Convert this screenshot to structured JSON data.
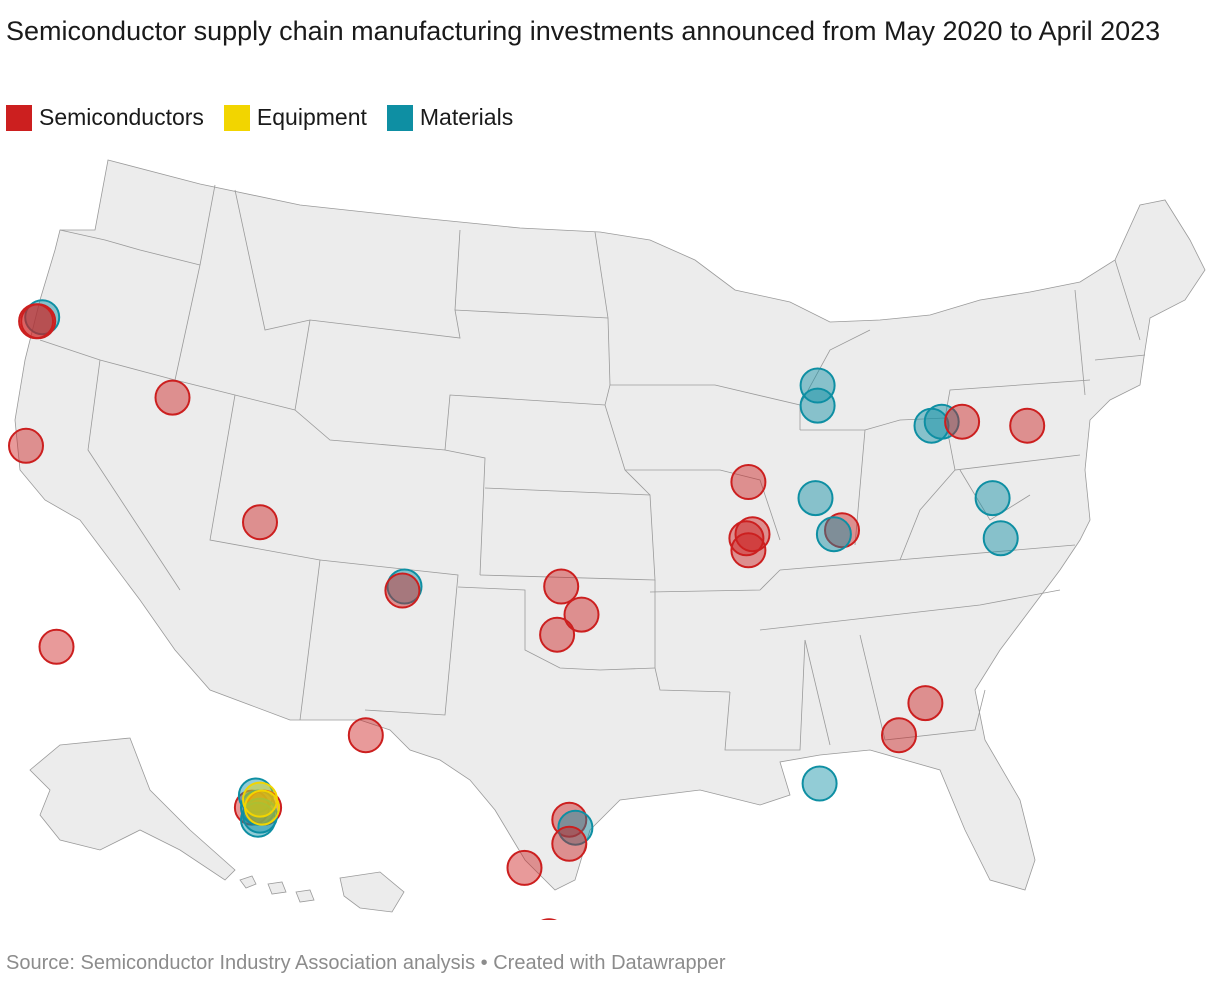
{
  "title": "Semiconductor supply chain manufacturing investments announced from May 2020 to April 2023",
  "legend": [
    {
      "label": "Semiconductors",
      "color": "#cc1f1f",
      "key": "semi"
    },
    {
      "label": "Equipment",
      "color": "#f2d500",
      "key": "equip"
    },
    {
      "label": "Materials",
      "color": "#0e8fa3",
      "key": "mat"
    }
  ],
  "source": "Source: Semiconductor Industry Association analysis • Created with Datawrapper",
  "points": [
    {
      "cat": "mat",
      "lon": -122.6,
      "lat": 45.6
    },
    {
      "cat": "semi",
      "lon": -122.8,
      "lat": 45.5
    },
    {
      "cat": "semi",
      "lon": -122.9,
      "lat": 45.5
    },
    {
      "cat": "semi",
      "lon": -123.4,
      "lat": 42.4
    },
    {
      "cat": "semi",
      "lon": -116.2,
      "lat": 43.6
    },
    {
      "cat": "semi",
      "lon": -121.9,
      "lat": 37.4
    },
    {
      "cat": "semi",
      "lon": -111.9,
      "lat": 40.5
    },
    {
      "cat": "mat",
      "lon": -104.8,
      "lat": 38.9
    },
    {
      "cat": "semi",
      "lon": -104.9,
      "lat": 38.8
    },
    {
      "cat": "semi",
      "lon": -106.7,
      "lat": 35.2
    },
    {
      "cat": "semi",
      "lon": -112.3,
      "lat": 33.4
    },
    {
      "cat": "mat",
      "lon": -112.1,
      "lat": 33.7
    },
    {
      "cat": "mat",
      "lon": -112.0,
      "lat": 33.4
    },
    {
      "cat": "semi",
      "lon": -111.7,
      "lat": 33.4
    },
    {
      "cat": "mat",
      "lon": -111.9,
      "lat": 33.2
    },
    {
      "cat": "mat",
      "lon": -112.0,
      "lat": 33.1
    },
    {
      "cat": "equip",
      "lon": -111.9,
      "lat": 33.6
    },
    {
      "cat": "equip",
      "lon": -111.8,
      "lat": 33.4
    },
    {
      "cat": "semi",
      "lon": -97.1,
      "lat": 38.9
    },
    {
      "cat": "semi",
      "lon": -96.1,
      "lat": 38.2
    },
    {
      "cat": "semi",
      "lon": -97.3,
      "lat": 37.7
    },
    {
      "cat": "semi",
      "lon": -96.7,
      "lat": 33.1
    },
    {
      "cat": "mat",
      "lon": -96.4,
      "lat": 32.9
    },
    {
      "cat": "semi",
      "lon": -96.7,
      "lat": 32.5
    },
    {
      "cat": "semi",
      "lon": -98.9,
      "lat": 31.9
    },
    {
      "cat": "semi",
      "lon": -97.7,
      "lat": 30.2
    },
    {
      "cat": "semi",
      "lon": -87.9,
      "lat": 41.5
    },
    {
      "cat": "semi",
      "lon": -88.0,
      "lat": 40.1
    },
    {
      "cat": "semi",
      "lon": -87.7,
      "lat": 40.2
    },
    {
      "cat": "semi",
      "lon": -87.9,
      "lat": 39.8
    },
    {
      "cat": "mat",
      "lon": -84.5,
      "lat": 43.9
    },
    {
      "cat": "mat",
      "lon": -84.5,
      "lat": 43.4
    },
    {
      "cat": "mat",
      "lon": -84.6,
      "lat": 41.1
    },
    {
      "cat": "semi",
      "lon": -83.3,
      "lat": 40.3
    },
    {
      "cat": "mat",
      "lon": -83.7,
      "lat": 40.2
    },
    {
      "cat": "mat",
      "lon": -78.9,
      "lat": 42.9
    },
    {
      "cat": "mat",
      "lon": -78.4,
      "lat": 43.0
    },
    {
      "cat": "semi",
      "lon": -77.4,
      "lat": 43.0
    },
    {
      "cat": "semi",
      "lon": -74.2,
      "lat": 42.9
    },
    {
      "cat": "mat",
      "lon": -75.9,
      "lat": 41.1
    },
    {
      "cat": "mat",
      "lon": -75.5,
      "lat": 40.1
    },
    {
      "cat": "semi",
      "lon": -79.2,
      "lat": 36.0
    },
    {
      "cat": "semi",
      "lon": -80.5,
      "lat": 35.2
    },
    {
      "cat": "mat",
      "lon": -84.4,
      "lat": 34.0
    },
    {
      "cat": "semi",
      "lon": -81.5,
      "lat": 28.4
    }
  ]
}
